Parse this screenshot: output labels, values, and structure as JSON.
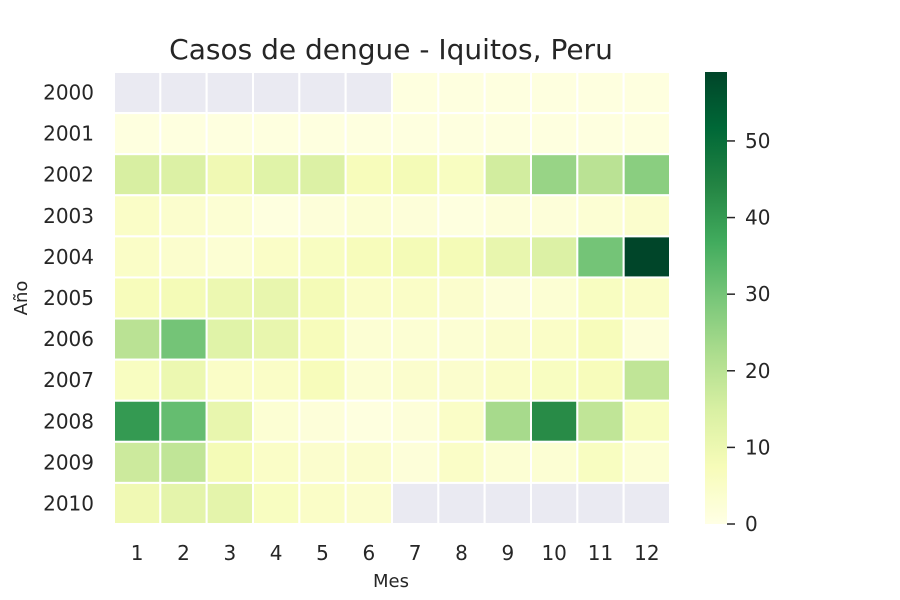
{
  "chart_data": {
    "type": "heatmap",
    "title": "Casos de dengue - Iquitos, Peru",
    "xlabel": "Mes",
    "ylabel": "Año",
    "x_categories": [
      "1",
      "2",
      "3",
      "4",
      "5",
      "6",
      "7",
      "8",
      "9",
      "10",
      "11",
      "12"
    ],
    "y_categories": [
      "2000",
      "2001",
      "2002",
      "2003",
      "2004",
      "2005",
      "2006",
      "2007",
      "2008",
      "2009",
      "2010"
    ],
    "values": [
      [
        null,
        null,
        null,
        null,
        null,
        null,
        1,
        1,
        1,
        1,
        1,
        1
      ],
      [
        1,
        1,
        1,
        1,
        1,
        1,
        1,
        1,
        1,
        1,
        1,
        1
      ],
      [
        15,
        14,
        9,
        13,
        14,
        7,
        8,
        6,
        16,
        25,
        20,
        27
      ],
      [
        5,
        4,
        3,
        1,
        2,
        3,
        2,
        1,
        2,
        2,
        3,
        4
      ],
      [
        5,
        4,
        3,
        5,
        6,
        7,
        8,
        8,
        11,
        14,
        30,
        59
      ],
      [
        7,
        8,
        10,
        11,
        8,
        5,
        5,
        4,
        2,
        3,
        6,
        5
      ],
      [
        20,
        30,
        13,
        11,
        7,
        3,
        3,
        3,
        4,
        5,
        7,
        2
      ],
      [
        6,
        10,
        5,
        5,
        7,
        3,
        4,
        4,
        5,
        6,
        7,
        19
      ],
      [
        40,
        32,
        11,
        3,
        2,
        1,
        2,
        5,
        23,
        43,
        19,
        6
      ],
      [
        17,
        19,
        8,
        5,
        4,
        4,
        2,
        5,
        3,
        3,
        6,
        3
      ],
      [
        9,
        12,
        12,
        6,
        5,
        4,
        null,
        null,
        null,
        null,
        null,
        null
      ]
    ],
    "vmin": 0,
    "vmax": 59,
    "colormap": "YlGn",
    "missing_color": "#eaeaf2",
    "colorbar": {
      "ticks": [
        0,
        10,
        20,
        30,
        40,
        50
      ]
    }
  }
}
